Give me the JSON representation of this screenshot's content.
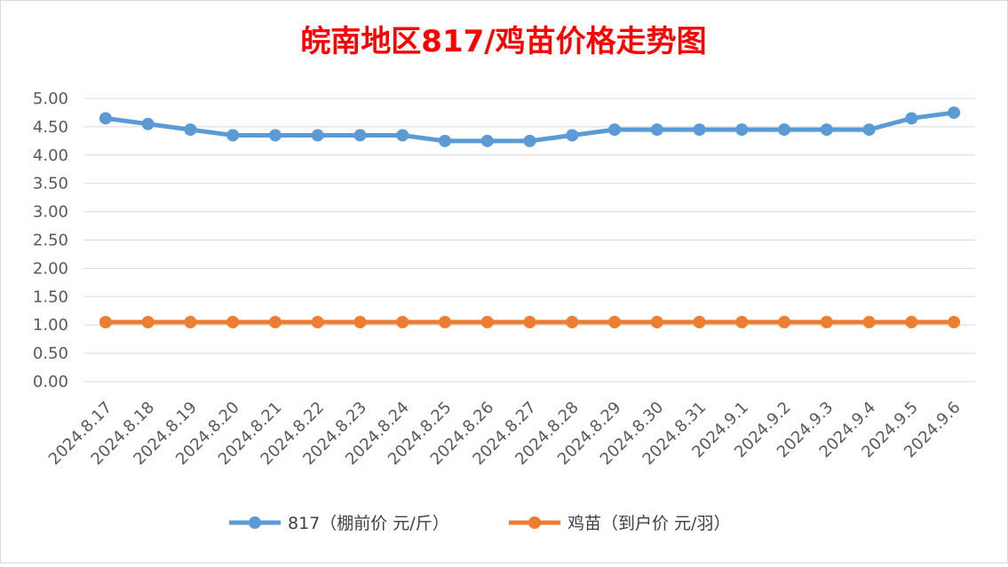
{
  "chart_data": {
    "type": "line",
    "title": "皖南地区817/鸡苗价格走势图",
    "title_color": "#ff0000",
    "xlabel": "",
    "ylabel": "",
    "ylim": [
      0,
      5
    ],
    "yticks": [
      "0.00",
      "0.50",
      "1.00",
      "1.50",
      "2.00",
      "2.50",
      "3.00",
      "3.50",
      "4.00",
      "4.50",
      "5.00"
    ],
    "grid": true,
    "legend_position": "bottom",
    "categories": [
      "2024.8.17",
      "2024.8.18",
      "2024.8.19",
      "2024.8.20",
      "2024.8.21",
      "2024.8.22",
      "2024.8.23",
      "2024.8.24",
      "2024.8.25",
      "2024.8.26",
      "2024.8.27",
      "2024.8.28",
      "2024.8.29",
      "2024.8.30",
      "2024.8.31",
      "2024.9.1",
      "2024.9.2",
      "2024.9.3",
      "2024.9.4",
      "2024.9.5",
      "2024.9.6"
    ],
    "series": [
      {
        "name": "817（棚前价 元/斤）",
        "color": "#5b9bd5",
        "values": [
          4.65,
          4.55,
          4.45,
          4.35,
          4.35,
          4.35,
          4.35,
          4.35,
          4.25,
          4.25,
          4.25,
          4.35,
          4.45,
          4.45,
          4.45,
          4.45,
          4.45,
          4.45,
          4.45,
          4.65,
          4.75
        ]
      },
      {
        "name": "鸡苗（到户价 元/羽）",
        "color": "#ed7d31",
        "values": [
          1.05,
          1.05,
          1.05,
          1.05,
          1.05,
          1.05,
          1.05,
          1.05,
          1.05,
          1.05,
          1.05,
          1.05,
          1.05,
          1.05,
          1.05,
          1.05,
          1.05,
          1.05,
          1.05,
          1.05,
          1.05
        ]
      }
    ]
  }
}
